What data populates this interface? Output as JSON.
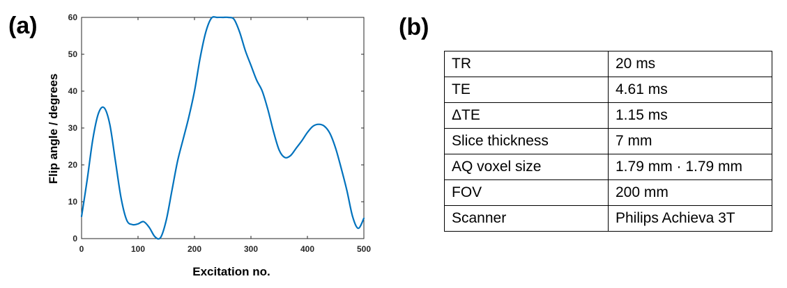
{
  "panel_labels": {
    "a": "(a)",
    "b": "(b)"
  },
  "chart_data": {
    "type": "line",
    "title": "",
    "xlabel": "Excitation no.",
    "ylabel": "Flip angle / degrees",
    "xlim": [
      0,
      500
    ],
    "ylim": [
      0,
      60
    ],
    "xticks": [
      0,
      100,
      200,
      300,
      400,
      500
    ],
    "yticks": [
      0,
      10,
      20,
      30,
      40,
      50,
      60
    ],
    "grid": false,
    "line_color": "#0072BD",
    "series": [
      {
        "name": "Flip angle",
        "x": [
          0,
          10,
          20,
          30,
          40,
          50,
          60,
          70,
          80,
          90,
          100,
          110,
          120,
          130,
          140,
          150,
          160,
          170,
          180,
          190,
          200,
          210,
          220,
          230,
          240,
          250,
          260,
          270,
          280,
          290,
          300,
          310,
          320,
          330,
          340,
          350,
          360,
          370,
          380,
          390,
          400,
          410,
          420,
          430,
          440,
          450,
          460,
          470,
          480,
          490,
          500
        ],
        "y": [
          6,
          16,
          27,
          34,
          35.5,
          31,
          21,
          11,
          5,
          3.8,
          4,
          4.6,
          3,
          0.5,
          0.3,
          5,
          13,
          21,
          27,
          33,
          40,
          49,
          56,
          59.8,
          60,
          60,
          60,
          59.5,
          56,
          51,
          47,
          43,
          40,
          35,
          29,
          24,
          22,
          22.5,
          24.5,
          26.5,
          28.8,
          30.5,
          31,
          30.5,
          28.5,
          24.5,
          19,
          13,
          6,
          2.8,
          5.5
        ]
      }
    ]
  },
  "table": {
    "rows": [
      {
        "param": "TR",
        "value": "20 ms"
      },
      {
        "param": "TE",
        "value": "4.61 ms"
      },
      {
        "param": "ΔTE",
        "value": "1.15 ms"
      },
      {
        "param": "Slice thickness",
        "value": "7 mm"
      },
      {
        "param": "AQ voxel size",
        "value": "1.79 mm · 1.79 mm"
      },
      {
        "param": "FOV",
        "value": "200 mm"
      },
      {
        "param": "Scanner",
        "value": "Philips Achieva 3T"
      }
    ]
  }
}
